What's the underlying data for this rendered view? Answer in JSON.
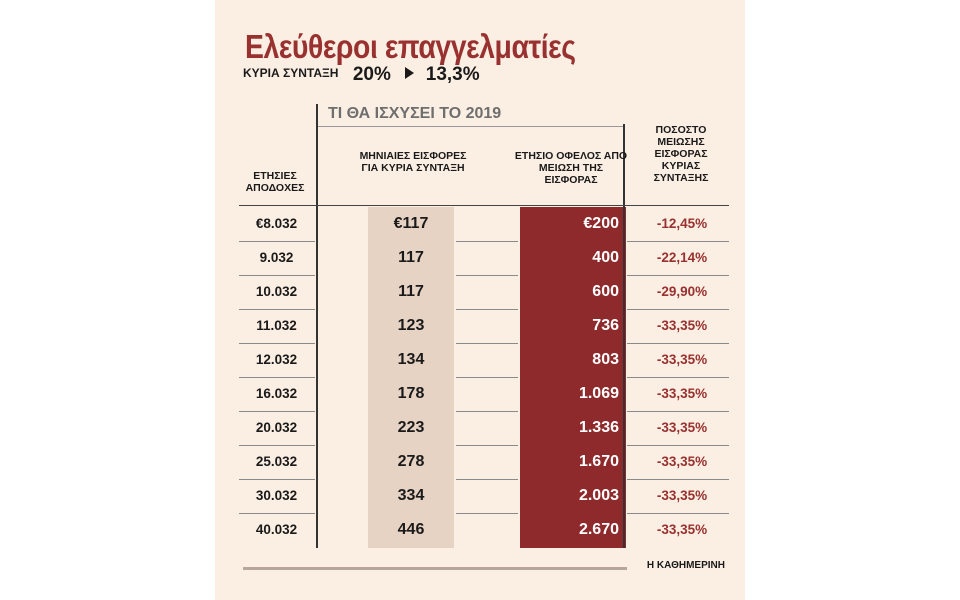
{
  "title": "Ελεύθεροι επαγγελματίες",
  "subtitle": {
    "label": "ΚΥΡΙΑ ΣΥΝΤΑΞΗ",
    "from": "20%",
    "to": "13,3%"
  },
  "period_heading": "ΤΙ ΘΑ ΙΣΧΥΣΕΙ ΤΟ 2019",
  "columns": {
    "income": "ΕΤΗΣΙΕΣ ΑΠΟΔΟΧΕΣ",
    "monthly": "ΜΗΝΙΑΙΕΣ ΕΙΣΦΟΡΕΣ ΓΙΑ ΚΥΡΙΑ ΣΥΝΤΑΞΗ",
    "benefit": "ΕΤΗΣΙΟ ΟΦΕΛΟΣ ΑΠΟ ΜΕΙΩΣΗ ΤΗΣ ΕΙΣΦΟΡΑΣ",
    "reduction": "ΠΟΣΟΣΤΟ ΜΕΙΩΣΗΣ ΕΙΣΦΟΡΑΣ ΚΥΡΙΑΣ ΣΥΝΤΑΞΗΣ"
  },
  "colors": {
    "panel_background": "#fbeee3",
    "accent_red": "#98312f",
    "benefit_column": "#8f2a2c",
    "monthly_column": "#e7d3c4"
  },
  "rows": [
    {
      "income": "€8.032",
      "monthly": "€117",
      "benefit": "€200",
      "reduction": "-12,45%"
    },
    {
      "income": "9.032",
      "monthly": "117",
      "benefit": "400",
      "reduction": "-22,14%"
    },
    {
      "income": "10.032",
      "monthly": "117",
      "benefit": "600",
      "reduction": "-29,90%"
    },
    {
      "income": "11.032",
      "monthly": "123",
      "benefit": "736",
      "reduction": "-33,35%"
    },
    {
      "income": "12.032",
      "monthly": "134",
      "benefit": "803",
      "reduction": "-33,35%"
    },
    {
      "income": "16.032",
      "monthly": "178",
      "benefit": "1.069",
      "reduction": "-33,35%"
    },
    {
      "income": "20.032",
      "monthly": "223",
      "benefit": "1.336",
      "reduction": "-33,35%"
    },
    {
      "income": "25.032",
      "monthly": "278",
      "benefit": "1.670",
      "reduction": "-33,35%"
    },
    {
      "income": "30.032",
      "monthly": "334",
      "benefit": "2.003",
      "reduction": "-33,35%"
    },
    {
      "income": "40.032",
      "monthly": "446",
      "benefit": "2.670",
      "reduction": "-33,35%"
    }
  ],
  "source": "Η ΚΑΘΗΜΕΡΙΝΗ"
}
